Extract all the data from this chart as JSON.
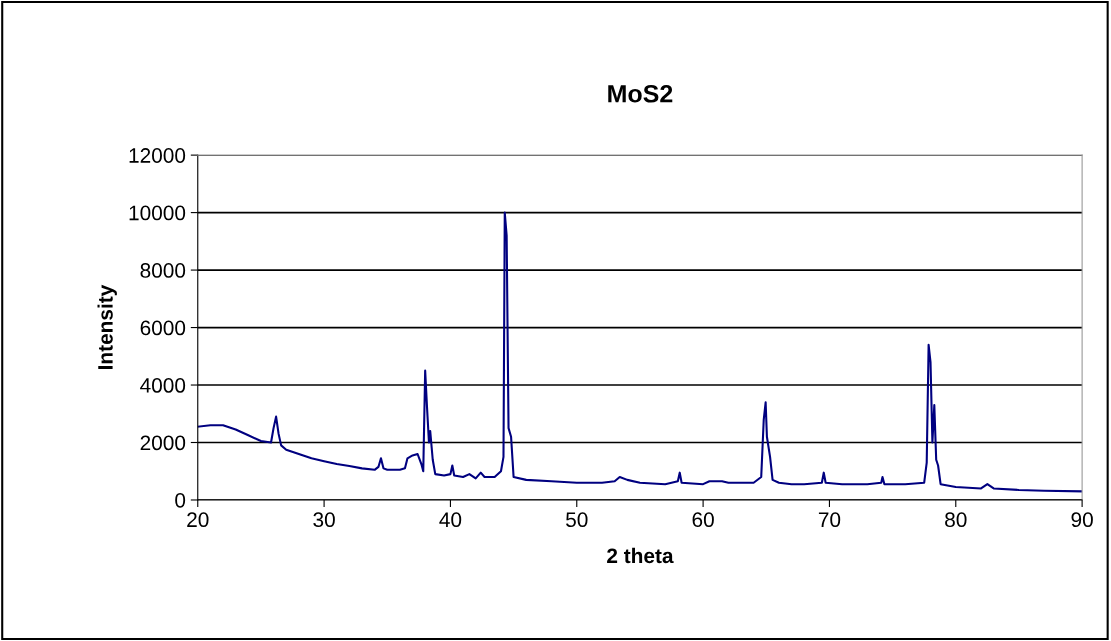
{
  "chart_data": {
    "type": "line",
    "title": "MoS2",
    "xlabel": "2 theta",
    "ylabel": "Intensity",
    "xlim": [
      20,
      90
    ],
    "xticks": [
      20,
      30,
      40,
      50,
      60,
      70,
      80,
      90
    ],
    "ylim": [
      0,
      12000
    ],
    "yticks": [
      0,
      2000,
      4000,
      6000,
      8000,
      10000,
      12000
    ],
    "grid": "y",
    "legend": false,
    "marker": "none",
    "line_style": "solid",
    "series": [
      {
        "color": "#000080",
        "x": [
          20,
          21,
          22,
          23,
          24,
          25,
          25.8,
          26.0,
          26.2,
          26.4,
          26.6,
          27,
          28,
          29,
          30,
          31,
          32,
          33,
          34,
          34.3,
          34.5,
          34.7,
          35,
          36,
          36.4,
          36.6,
          37,
          37.4,
          37.7,
          37.85,
          38.0,
          38.15,
          38.3,
          38.4,
          38.6,
          38.8,
          39.5,
          40.0,
          40.15,
          40.3,
          41,
          41.5,
          42,
          42.4,
          42.7,
          43.5,
          44.0,
          44.2,
          44.3,
          44.45,
          44.6,
          44.8,
          45.0,
          46,
          48,
          50,
          52,
          53,
          53.4,
          54,
          55,
          57,
          58.0,
          58.15,
          58.3,
          60,
          60.5,
          61.5,
          62,
          64,
          64.6,
          64.8,
          64.95,
          65.05,
          65.3,
          65.5,
          66,
          67,
          68,
          69.4,
          69.55,
          69.7,
          71,
          73,
          74.1,
          74.2,
          74.35,
          76,
          77.5,
          77.7,
          77.85,
          78.0,
          78.15,
          78.3,
          78.45,
          78.6,
          78.8,
          80,
          82,
          82.5,
          83,
          85,
          87,
          90
        ],
        "values": [
          2550,
          2600,
          2600,
          2450,
          2250,
          2050,
          2000,
          2500,
          2900,
          2300,
          1900,
          1750,
          1600,
          1450,
          1350,
          1250,
          1180,
          1100,
          1050,
          1150,
          1450,
          1100,
          1050,
          1050,
          1100,
          1450,
          1550,
          1600,
          1250,
          1000,
          4500,
          3200,
          2000,
          2400,
          1400,
          900,
          850,
          900,
          1200,
          850,
          800,
          900,
          750,
          950,
          800,
          800,
          1000,
          1500,
          10000,
          9200,
          2500,
          2200,
          800,
          700,
          650,
          600,
          600,
          650,
          800,
          700,
          600,
          550,
          650,
          950,
          600,
          550,
          650,
          650,
          600,
          600,
          800,
          2800,
          3400,
          2200,
          1500,
          700,
          600,
          550,
          550,
          600,
          950,
          600,
          550,
          550,
          600,
          800,
          550,
          550,
          600,
          1300,
          5400,
          4800,
          2000,
          3300,
          1400,
          1200,
          550,
          450,
          400,
          550,
          400,
          350,
          320,
          300
        ]
      }
    ]
  }
}
